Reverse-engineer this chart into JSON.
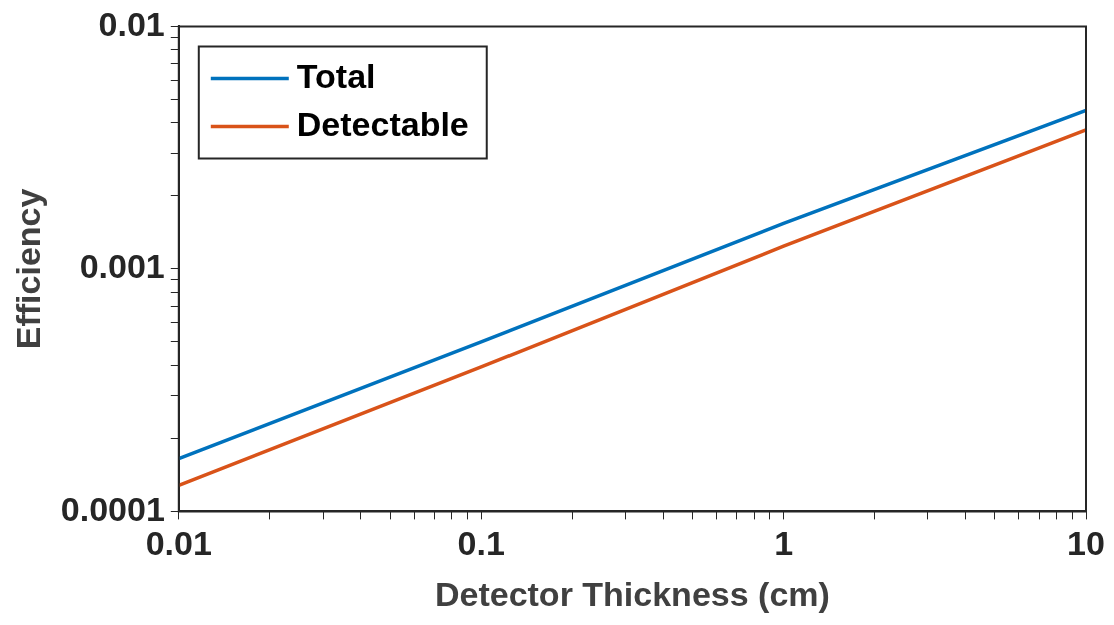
{
  "chart_data": {
    "type": "line",
    "xlabel": "Detector Thickness (cm)",
    "ylabel": "Efficiency",
    "log": "xy",
    "grid": false,
    "legend": "top left",
    "line_style": "solid",
    "marker": "none",
    "x": [
      0.01,
      0.1,
      1,
      10
    ],
    "xlim": [
      0.01,
      10
    ],
    "ylim": [
      0.0001,
      0.01
    ],
    "xticks": [
      0.01,
      {
        "value": 0.02,
        "label": null
      },
      {
        "value": 0.03,
        "label": null
      },
      {
        "value": 0.04,
        "label": null
      },
      {
        "value": 0.05,
        "label": null
      },
      {
        "value": 0.06,
        "label": null
      },
      {
        "value": 0.07,
        "label": null
      },
      {
        "value": 0.08,
        "label": null
      },
      {
        "value": 0.09,
        "label": null
      },
      0.1,
      {
        "value": 0.2,
        "label": null
      },
      {
        "value": 0.3,
        "label": null
      },
      {
        "value": 0.4,
        "label": null
      },
      {
        "value": 0.5,
        "label": null
      },
      {
        "value": 0.6,
        "label": null
      },
      {
        "value": 0.7,
        "label": null
      },
      {
        "value": 0.8,
        "label": null
      },
      {
        "value": 0.9,
        "label": null
      },
      1,
      {
        "value": 2,
        "label": null
      },
      {
        "value": 3,
        "label": null
      },
      {
        "value": 4,
        "label": null
      },
      {
        "value": 5,
        "label": null
      },
      {
        "value": 6,
        "label": null
      },
      {
        "value": 7,
        "label": null
      },
      {
        "value": 8,
        "label": null
      },
      {
        "value": 9,
        "label": null
      },
      10
    ],
    "yticks": [
      0.0001,
      {
        "value": 0.0002,
        "label": null
      },
      {
        "value": 0.0003,
        "label": null
      },
      {
        "value": 0.0004,
        "label": null
      },
      {
        "value": 0.0005,
        "label": null
      },
      {
        "value": 0.0006,
        "label": null
      },
      {
        "value": 0.0007,
        "label": null
      },
      {
        "value": 0.0008,
        "label": null
      },
      {
        "value": 0.0009,
        "label": null
      },
      0.001,
      {
        "value": 0.002,
        "label": null
      },
      {
        "value": 0.003,
        "label": null
      },
      {
        "value": 0.004,
        "label": null
      },
      {
        "value": 0.005,
        "label": null
      },
      {
        "value": 0.006,
        "label": null
      },
      {
        "value": 0.007,
        "label": null
      },
      {
        "value": 0.008,
        "label": null
      },
      {
        "value": 0.009,
        "label": null
      },
      0.01
    ],
    "series": [
      {
        "name": "Total",
        "color": "#0072bd",
        "values": [
          0.000165,
          0.0005,
          0.00154,
          0.0045
        ]
      },
      {
        "name": "Detectable",
        "color": "#d95319",
        "values": [
          0.000128,
          0.000394,
          0.00124,
          0.00374
        ]
      }
    ]
  }
}
